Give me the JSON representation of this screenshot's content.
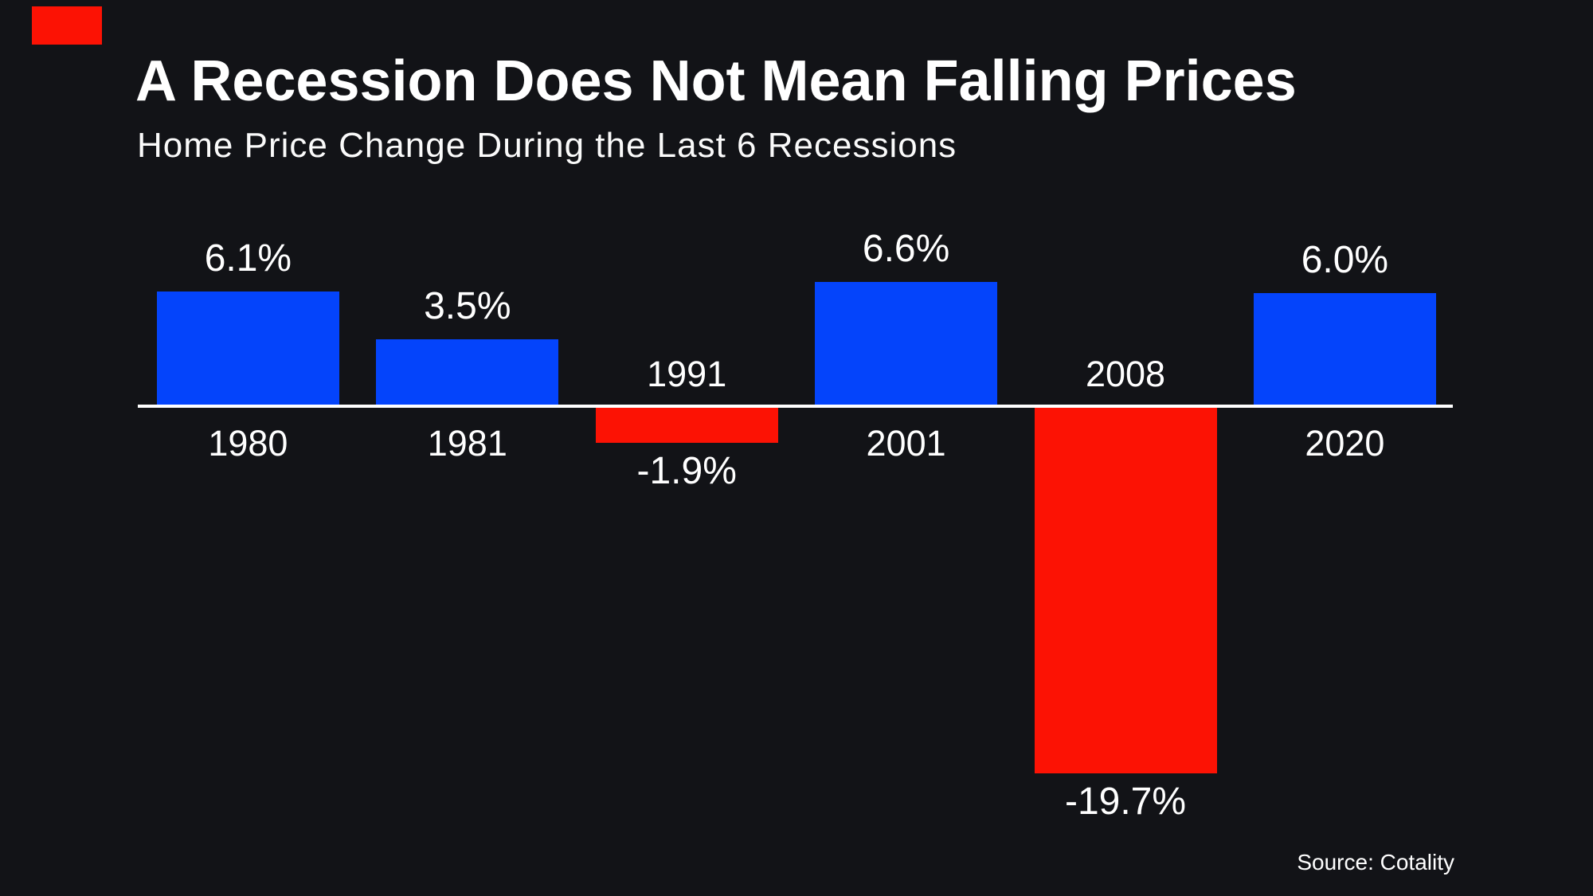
{
  "brand": {
    "mark_color": "#FC1204"
  },
  "chart_data": {
    "type": "bar",
    "title": "A Recession Does Not Mean Falling Prices",
    "subtitle": "Home Price Change During the Last 6 Recessions",
    "source": "Source: Cotality",
    "categories": [
      "1980",
      "1981",
      "1991",
      "2001",
      "2008",
      "2020"
    ],
    "values": [
      6.1,
      3.5,
      -1.9,
      6.6,
      -19.7,
      6.0
    ],
    "value_labels": [
      "6.1%",
      "3.5%",
      "-1.9%",
      "6.6%",
      "-19.7%",
      "6.0%"
    ],
    "positive_color": "#0444FB",
    "negative_color": "#FC1204",
    "axis_color": "#FFFFFF",
    "text_color": "#FFFFFF",
    "background": "#121317",
    "grid": "off",
    "legend": "none",
    "baseline": 0,
    "ylim": [
      -19.7,
      6.6
    ]
  }
}
